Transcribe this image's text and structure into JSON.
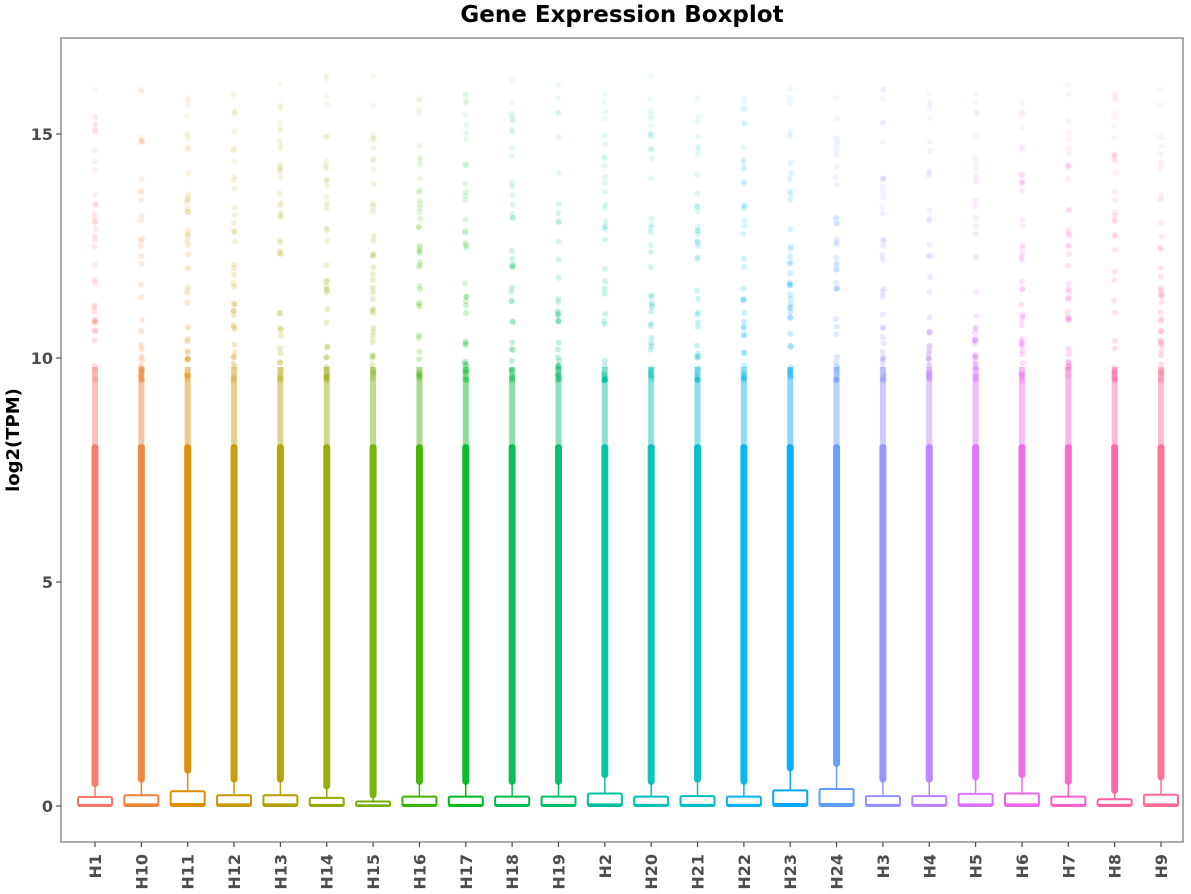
{
  "chart_data": {
    "type": "box",
    "title": "Gene Expression Boxplot",
    "xlabel": "",
    "ylabel": "log2(TPM)",
    "ylim": [
      -0.8,
      17.1
    ],
    "yticks": [
      0,
      5,
      10,
      15
    ],
    "grid": false,
    "legend": "none",
    "categories": [
      "H1",
      "H10",
      "H11",
      "H12",
      "H13",
      "H14",
      "H15",
      "H16",
      "H17",
      "H18",
      "H19",
      "H2",
      "H20",
      "H21",
      "H22",
      "H23",
      "H24",
      "H3",
      "H4",
      "H5",
      "H6",
      "H7",
      "H8",
      "H9"
    ],
    "colors": [
      "#F8766D",
      "#EB8335",
      "#DB8E00",
      "#C79800",
      "#B0A100",
      "#96A900",
      "#74B000",
      "#3DB500",
      "#00B81F",
      "#00BB4E",
      "#00BE6C",
      "#00C0A0",
      "#00BFB7",
      "#00BDC4",
      "#00B4EF",
      "#00A8FF",
      "#619CFF",
      "#9590FF",
      "#B983FF",
      "#DB72FB",
      "#F066EA",
      "#FF61C9",
      "#FF62A4",
      "#FF6C91"
    ],
    "series": [
      {
        "name": "H1",
        "q1": 0,
        "median": 0.02,
        "q3": 0.2,
        "whisker_low": 0,
        "whisker_high": 0.5,
        "max_outlier": 16.0
      },
      {
        "name": "H10",
        "q1": 0,
        "median": 0.03,
        "q3": 0.24,
        "whisker_low": 0,
        "whisker_high": 0.6,
        "max_outlier": 16.0
      },
      {
        "name": "H11",
        "q1": 0,
        "median": 0.04,
        "q3": 0.33,
        "whisker_low": 0,
        "whisker_high": 0.8,
        "max_outlier": 15.8
      },
      {
        "name": "H12",
        "q1": 0,
        "median": 0.03,
        "q3": 0.24,
        "whisker_low": 0,
        "whisker_high": 0.6,
        "max_outlier": 15.9
      },
      {
        "name": "H13",
        "q1": 0,
        "median": 0.03,
        "q3": 0.24,
        "whisker_low": 0,
        "whisker_high": 0.6,
        "max_outlier": 16.1
      },
      {
        "name": "H14",
        "q1": 0,
        "median": 0.02,
        "q3": 0.18,
        "whisker_low": 0,
        "whisker_high": 0.45,
        "max_outlier": 16.3
      },
      {
        "name": "H15",
        "q1": 0,
        "median": 0.01,
        "q3": 0.1,
        "whisker_low": 0,
        "whisker_high": 0.25,
        "max_outlier": 16.3
      },
      {
        "name": "H16",
        "q1": 0,
        "median": 0.02,
        "q3": 0.21,
        "whisker_low": 0,
        "whisker_high": 0.55,
        "max_outlier": 15.8
      },
      {
        "name": "H17",
        "q1": 0,
        "median": 0.02,
        "q3": 0.21,
        "whisker_low": 0,
        "whisker_high": 0.55,
        "max_outlier": 15.9
      },
      {
        "name": "H18",
        "q1": 0,
        "median": 0.02,
        "q3": 0.21,
        "whisker_low": 0,
        "whisker_high": 0.55,
        "max_outlier": 16.2
      },
      {
        "name": "H19",
        "q1": 0,
        "median": 0.02,
        "q3": 0.21,
        "whisker_low": 0,
        "whisker_high": 0.55,
        "max_outlier": 16.1
      },
      {
        "name": "H2",
        "q1": 0,
        "median": 0.03,
        "q3": 0.28,
        "whisker_low": 0,
        "whisker_high": 0.7,
        "max_outlier": 15.9
      },
      {
        "name": "H20",
        "q1": 0,
        "median": 0.02,
        "q3": 0.21,
        "whisker_low": 0,
        "whisker_high": 0.55,
        "max_outlier": 16.3
      },
      {
        "name": "H21",
        "q1": 0,
        "median": 0.02,
        "q3": 0.22,
        "whisker_low": 0,
        "whisker_high": 0.6,
        "max_outlier": 15.8
      },
      {
        "name": "H22",
        "q1": 0,
        "median": 0.02,
        "q3": 0.21,
        "whisker_low": 0,
        "whisker_high": 0.55,
        "max_outlier": 15.8
      },
      {
        "name": "H23",
        "q1": 0,
        "median": 0.04,
        "q3": 0.35,
        "whisker_low": 0,
        "whisker_high": 0.85,
        "max_outlier": 16.0
      },
      {
        "name": "H24",
        "q1": 0,
        "median": 0.04,
        "q3": 0.38,
        "whisker_low": 0,
        "whisker_high": 0.95,
        "max_outlier": 15.8
      },
      {
        "name": "H3",
        "q1": 0,
        "median": 0.02,
        "q3": 0.22,
        "whisker_low": 0,
        "whisker_high": 0.6,
        "max_outlier": 16.0
      },
      {
        "name": "H4",
        "q1": 0,
        "median": 0.02,
        "q3": 0.22,
        "whisker_low": 0,
        "whisker_high": 0.6,
        "max_outlier": 15.9
      },
      {
        "name": "H5",
        "q1": 0,
        "median": 0.03,
        "q3": 0.27,
        "whisker_low": 0,
        "whisker_high": 0.65,
        "max_outlier": 15.9
      },
      {
        "name": "H6",
        "q1": 0,
        "median": 0.03,
        "q3": 0.28,
        "whisker_low": 0,
        "whisker_high": 0.7,
        "max_outlier": 15.7
      },
      {
        "name": "H7",
        "q1": 0,
        "median": 0.02,
        "q3": 0.21,
        "whisker_low": 0,
        "whisker_high": 0.55,
        "max_outlier": 16.1
      },
      {
        "name": "H8",
        "q1": 0,
        "median": 0.02,
        "q3": 0.15,
        "whisker_low": 0,
        "whisker_high": 0.35,
        "max_outlier": 15.9
      },
      {
        "name": "H9",
        "q1": 0,
        "median": 0.03,
        "q3": 0.25,
        "whisker_low": 0,
        "whisker_high": 0.65,
        "max_outlier": 16.0
      }
    ]
  }
}
